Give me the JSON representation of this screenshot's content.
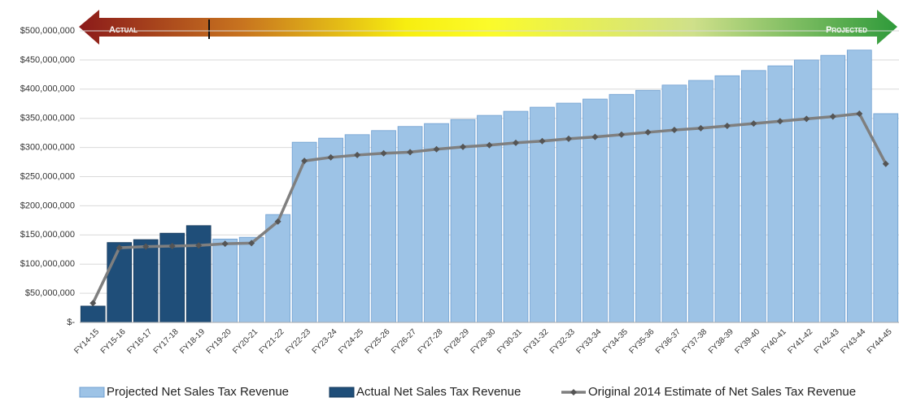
{
  "chart_data": {
    "type": "bar",
    "annotations": {
      "left": "Actual",
      "right": "Projected"
    },
    "categories": [
      "FY14-15",
      "FY15-16",
      "FY16-17",
      "FY17-18",
      "FY18-19",
      "FY19-20",
      "FY20-21",
      "FY21-22",
      "FY22-23",
      "FY23-24",
      "FY24-25",
      "FY25-26",
      "FY26-27",
      "FY27-28",
      "FY28-29",
      "FY29-30",
      "FY30-31",
      "FY31-32",
      "FY32-33",
      "FY33-34",
      "FY34-35",
      "FY35-36",
      "FY36-37",
      "FY37-38",
      "FY38-39",
      "FY39-40",
      "FY40-41",
      "FY41-42",
      "FY42-43",
      "FY43-44",
      "FY44-45"
    ],
    "series": [
      {
        "name": "Projected Net Sales Tax Revenue",
        "type": "bar",
        "color": "#9dc3e6",
        "values": [
          null,
          null,
          null,
          null,
          null,
          143000000,
          146000000,
          185000000,
          309000000,
          316000000,
          322000000,
          329000000,
          336000000,
          341000000,
          348000000,
          355000000,
          362000000,
          369000000,
          376000000,
          383000000,
          391000000,
          398000000,
          407000000,
          415000000,
          423000000,
          432000000,
          440000000,
          450000000,
          458000000,
          467000000,
          358000000
        ]
      },
      {
        "name": "Actual Net Sales Tax Revenue",
        "type": "bar",
        "color": "#1f4e79",
        "values": [
          28000000,
          137000000,
          142000000,
          153000000,
          166000000,
          null,
          null,
          null,
          null,
          null,
          null,
          null,
          null,
          null,
          null,
          null,
          null,
          null,
          null,
          null,
          null,
          null,
          null,
          null,
          null,
          null,
          null,
          null,
          null,
          null,
          null
        ]
      },
      {
        "name": "Original 2014 Estimate of Net Sales Tax Revenue",
        "type": "line",
        "color": "#7f7f7f",
        "values": [
          33000000,
          128000000,
          130000000,
          131000000,
          132000000,
          135000000,
          136000000,
          173000000,
          277000000,
          283000000,
          287000000,
          290000000,
          292000000,
          297000000,
          301000000,
          304000000,
          308000000,
          311000000,
          315000000,
          318000000,
          322000000,
          326000000,
          330000000,
          333000000,
          337000000,
          341000000,
          345000000,
          349000000,
          353000000,
          358000000,
          272000000
        ]
      }
    ],
    "ylim": [
      0,
      500000000
    ],
    "yticks": [
      {
        "value": 0,
        "label": "$-"
      },
      {
        "value": 50000000,
        "label": "$50,000,000"
      },
      {
        "value": 100000000,
        "label": "$100,000,000"
      },
      {
        "value": 150000000,
        "label": "$150,000,000"
      },
      {
        "value": 200000000,
        "label": "$200,000,000"
      },
      {
        "value": 250000000,
        "label": "$250,000,000"
      },
      {
        "value": 300000000,
        "label": "$300,000,000"
      },
      {
        "value": 350000000,
        "label": "$350,000,000"
      },
      {
        "value": 400000000,
        "label": "$400,000,000"
      },
      {
        "value": 450000000,
        "label": "$450,000,000"
      },
      {
        "value": 500000000,
        "label": "$500,000,000"
      }
    ],
    "grid": true,
    "legend": "bottom"
  }
}
